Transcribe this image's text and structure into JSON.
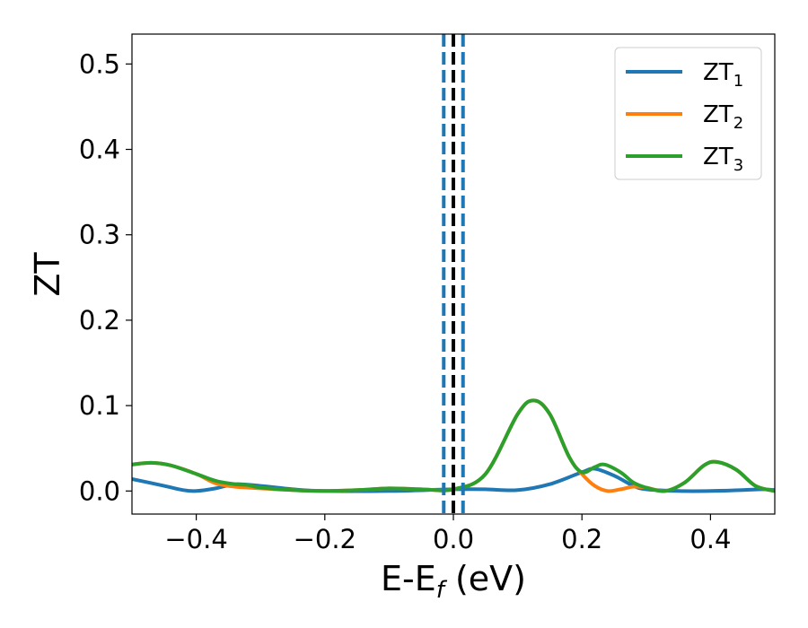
{
  "chart_data": {
    "type": "line",
    "xlabel_main": "E-E",
    "xlabel_sub": "f",
    "xlabel_unit": " (eV)",
    "ylabel": "ZT",
    "xlim": [
      -0.5,
      0.5
    ],
    "ylim": [
      -0.027,
      0.535
    ],
    "x_ticks": [
      {
        "value": -0.4,
        "label": "−0.4"
      },
      {
        "value": -0.2,
        "label": "−0.2"
      },
      {
        "value": 0.0,
        "label": "0.0"
      },
      {
        "value": 0.2,
        "label": "0.2"
      },
      {
        "value": 0.4,
        "label": "0.4"
      }
    ],
    "y_ticks": [
      {
        "value": 0.0,
        "label": "0.0"
      },
      {
        "value": 0.1,
        "label": "0.1"
      },
      {
        "value": 0.2,
        "label": "0.2"
      },
      {
        "value": 0.3,
        "label": "0.3"
      },
      {
        "value": 0.4,
        "label": "0.4"
      },
      {
        "value": 0.5,
        "label": "0.5"
      }
    ],
    "grid": false,
    "legend_position": "top-right",
    "series": [
      {
        "name": "ZT",
        "subscript": "1",
        "color": "#1f77b4",
        "x": [
          -0.5,
          -0.45,
          -0.42,
          -0.4,
          -0.37,
          -0.34,
          -0.3,
          -0.25,
          -0.2,
          -0.1,
          0.0,
          0.05,
          0.1,
          0.15,
          0.2,
          0.22,
          0.25,
          0.28,
          0.3,
          0.35,
          0.4,
          0.45,
          0.48,
          0.5
        ],
        "y": [
          0.014,
          0.006,
          0.001,
          0.0,
          0.003,
          0.008,
          0.006,
          0.002,
          0.0,
          0.0,
          0.002,
          0.002,
          0.001,
          0.008,
          0.022,
          0.026,
          0.018,
          0.006,
          0.002,
          0.0,
          0.0,
          0.001,
          0.002,
          0.001
        ]
      },
      {
        "name": "ZT",
        "subscript": "2",
        "color": "#ff7f0e",
        "x": [
          -0.5,
          -0.47,
          -0.44,
          -0.4,
          -0.37,
          -0.34,
          -0.32,
          -0.3,
          -0.25,
          -0.2,
          -0.15,
          -0.1,
          -0.05,
          0.0,
          0.05,
          0.1,
          0.125,
          0.15,
          0.18,
          0.2,
          0.22,
          0.24,
          0.26,
          0.28,
          0.3,
          0.33,
          0.36,
          0.39,
          0.41,
          0.44,
          0.47,
          0.5
        ],
        "y": [
          0.031,
          0.033,
          0.03,
          0.02,
          0.009,
          0.005,
          0.004,
          0.003,
          0.001,
          0.0,
          0.001,
          0.003,
          0.002,
          0.002,
          0.02,
          0.09,
          0.106,
          0.09,
          0.04,
          0.02,
          0.006,
          0.0,
          0.002,
          0.005,
          0.004,
          0.0,
          0.01,
          0.03,
          0.034,
          0.025,
          0.006,
          0.0
        ]
      },
      {
        "name": "ZT",
        "subscript": "3",
        "color": "#2ca02c",
        "x": [
          -0.5,
          -0.47,
          -0.44,
          -0.4,
          -0.37,
          -0.34,
          -0.32,
          -0.3,
          -0.25,
          -0.2,
          -0.15,
          -0.1,
          -0.05,
          0.0,
          0.05,
          0.1,
          0.125,
          0.15,
          0.18,
          0.2,
          0.22,
          0.235,
          0.26,
          0.28,
          0.3,
          0.33,
          0.36,
          0.39,
          0.41,
          0.44,
          0.47,
          0.5
        ],
        "y": [
          0.031,
          0.033,
          0.03,
          0.02,
          0.012,
          0.008,
          0.007,
          0.004,
          0.001,
          0.0,
          0.001,
          0.003,
          0.002,
          0.002,
          0.02,
          0.09,
          0.106,
          0.09,
          0.04,
          0.022,
          0.028,
          0.031,
          0.022,
          0.01,
          0.004,
          0.0,
          0.01,
          0.03,
          0.034,
          0.025,
          0.006,
          0.0
        ]
      }
    ],
    "vlines": [
      {
        "x": 0.0,
        "color": "#000000",
        "style": "dashed"
      },
      {
        "x": -0.015,
        "color": "#1f77b4",
        "style": "dashed"
      },
      {
        "x": 0.015,
        "color": "#1f77b4",
        "style": "dashed"
      }
    ]
  }
}
